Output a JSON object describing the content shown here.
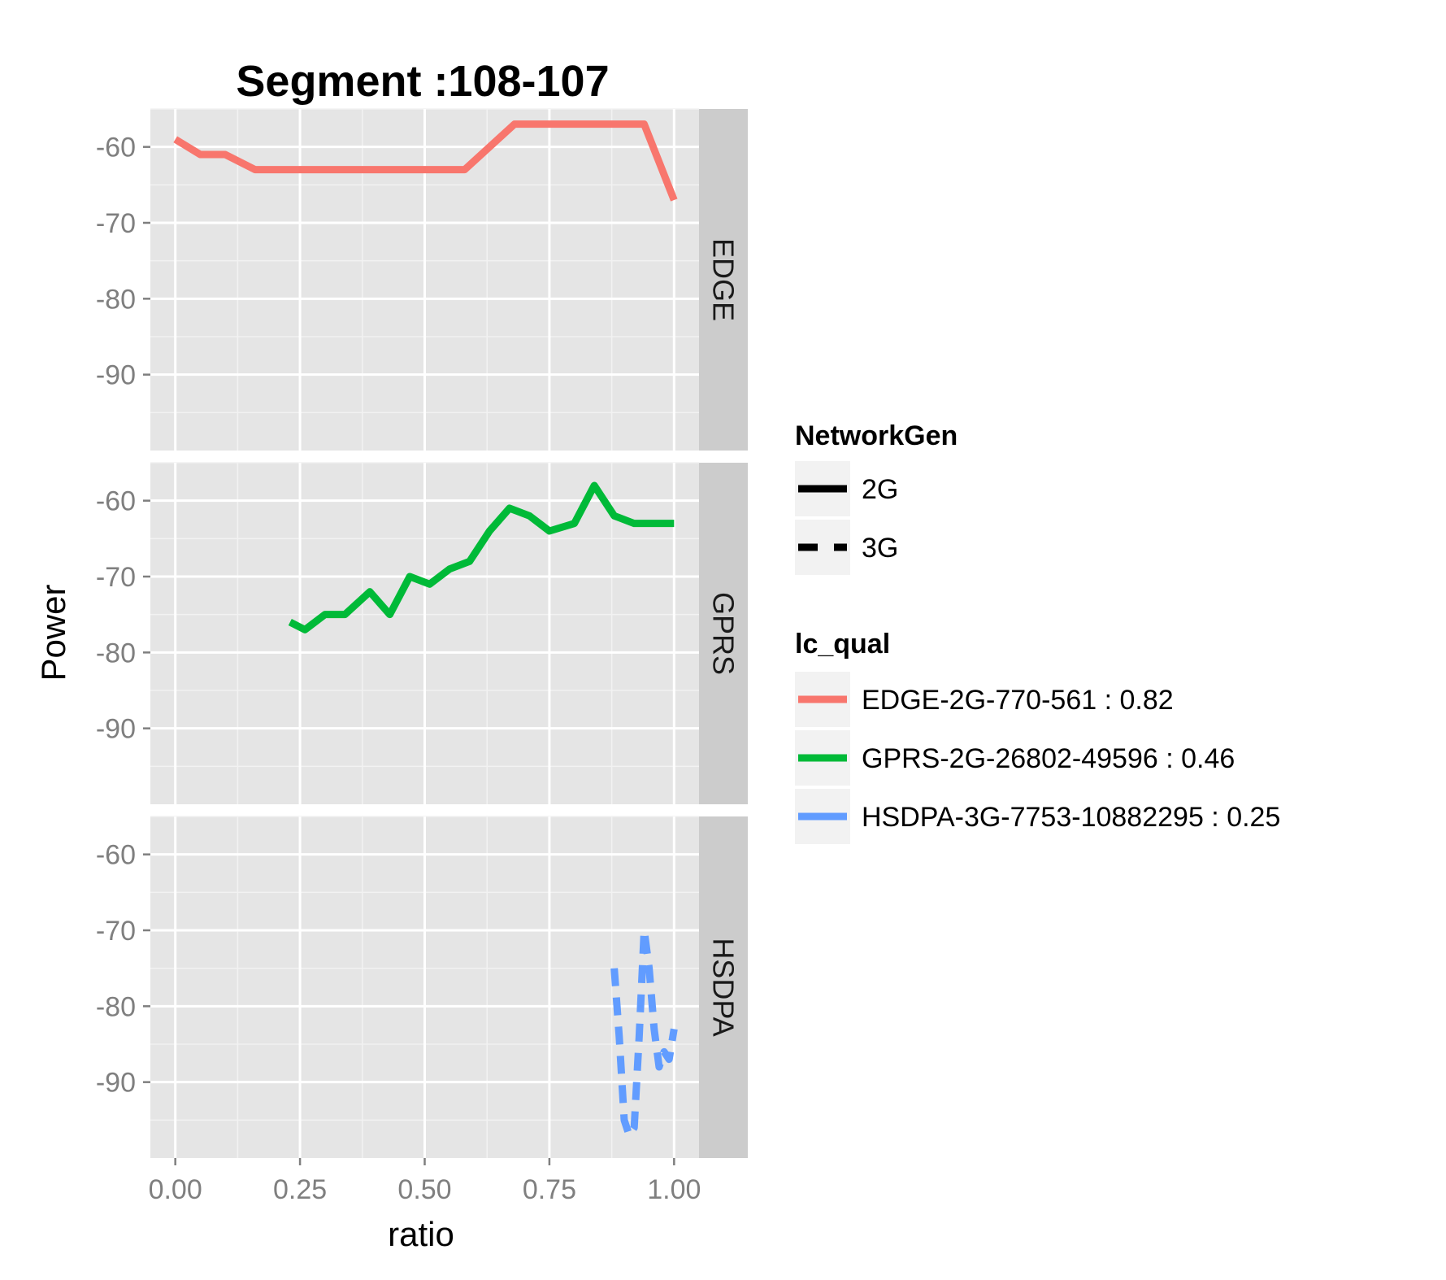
{
  "chart_data": {
    "type": "line",
    "title": "Segment :108-107",
    "xlabel": "ratio",
    "ylabel": "Power",
    "xlim": [
      -0.05,
      1.05
    ],
    "ylim": [
      -100,
      -55
    ],
    "x_ticks": [
      "0.00",
      "0.25",
      "0.50",
      "0.75",
      "1.00"
    ],
    "x_tick_values": [
      0,
      0.25,
      0.5,
      0.75,
      1.0
    ],
    "y_ticks": [
      "-60",
      "-70",
      "-80",
      "-90"
    ],
    "y_tick_values": [
      -60,
      -70,
      -80,
      -90
    ],
    "grid": true,
    "facets": [
      {
        "label": "EDGE",
        "series": [
          "EDGE-2G-770-561 : 0.82"
        ]
      },
      {
        "label": "GPRS",
        "series": [
          "GPRS-2G-26802-49596 : 0.46"
        ]
      },
      {
        "label": "HSDPA",
        "series": [
          "HSDPA-3G-7753-10882295 : 0.25"
        ]
      }
    ],
    "series": [
      {
        "name": "EDGE-2G-770-561 : 0.82",
        "facet": "EDGE",
        "network_gen": "2G",
        "color": "#F8766D",
        "x": [
          0.0,
          0.05,
          0.1,
          0.16,
          0.25,
          0.33,
          0.42,
          0.5,
          0.58,
          0.63,
          0.68,
          0.74,
          0.8,
          0.88,
          0.94,
          1.0
        ],
        "y": [
          -59,
          -61,
          -61,
          -63,
          -63,
          -63,
          -63,
          -63,
          -63,
          -60,
          -57,
          -57,
          -57,
          -57,
          -57,
          -67
        ]
      },
      {
        "name": "GPRS-2G-26802-49596 : 0.46",
        "facet": "GPRS",
        "network_gen": "2G",
        "color": "#00BA38",
        "x": [
          0.23,
          0.26,
          0.3,
          0.34,
          0.39,
          0.43,
          0.47,
          0.51,
          0.55,
          0.59,
          0.63,
          0.67,
          0.71,
          0.75,
          0.8,
          0.84,
          0.88,
          0.92,
          0.96,
          1.0
        ],
        "y": [
          -76,
          -77,
          -75,
          -75,
          -72,
          -75,
          -70,
          -71,
          -69,
          -68,
          -64,
          -61,
          -62,
          -64,
          -63,
          -58,
          -62,
          -63,
          -63,
          -63
        ]
      },
      {
        "name": "HSDPA-3G-7753-10882295 : 0.25",
        "facet": "HSDPA",
        "network_gen": "3G",
        "color": "#619CFF",
        "x": [
          0.88,
          0.89,
          0.9,
          0.91,
          0.92,
          0.93,
          0.94,
          0.95,
          0.96,
          0.97,
          0.98,
          0.99,
          1.0
        ],
        "y": [
          -75,
          -84,
          -95,
          -97,
          -96,
          -84,
          -70,
          -75,
          -83,
          -88,
          -86,
          -87,
          -83
        ]
      }
    ],
    "legend": {
      "placement": "right",
      "network_gen": {
        "title": "NetworkGen",
        "entries": [
          {
            "label": "2G",
            "dash": "solid"
          },
          {
            "label": "3G",
            "dash": "dashed"
          }
        ]
      },
      "lc_qual": {
        "title": "lc_qual",
        "entries": [
          {
            "label": "EDGE-2G-770-561 : 0.82",
            "color": "#F8766D"
          },
          {
            "label": "GPRS-2G-26802-49596 : 0.46",
            "color": "#00BA38"
          },
          {
            "label": "HSDPA-3G-7753-10882295 : 0.25",
            "color": "#619CFF"
          }
        ]
      }
    }
  }
}
